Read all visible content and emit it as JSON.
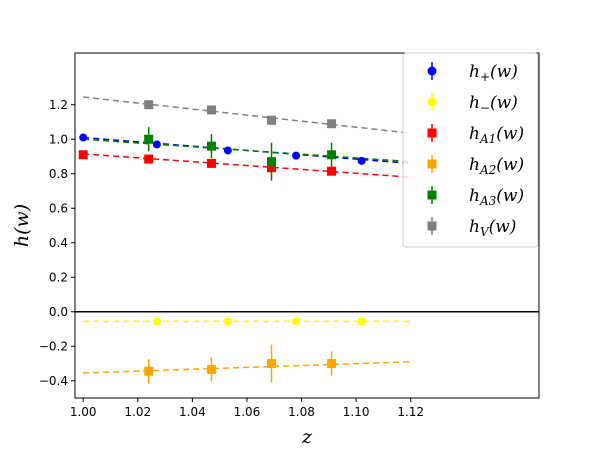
{
  "chart_data": {
    "type": "scatter",
    "xlabel": "z",
    "ylabel": "h(w)",
    "xlim": [
      0.997,
      1.167
    ],
    "ylim": [
      -0.5,
      1.5
    ],
    "xticks": [
      "1.00",
      "1.02",
      "1.04",
      "1.06",
      "1.08",
      "1.10",
      "1.12"
    ],
    "xtick_values": [
      1.0,
      1.02,
      1.04,
      1.06,
      1.08,
      1.1,
      1.12
    ],
    "yticks": [
      "−0.4",
      "−0.2",
      "0.0",
      "0.2",
      "0.4",
      "0.6",
      "0.8",
      "1.0",
      "1.2"
    ],
    "ytick_values": [
      -0.4,
      -0.2,
      0.0,
      0.2,
      0.4,
      0.6,
      0.8,
      1.0,
      1.2
    ],
    "zero_line": 0.0,
    "legend_position": "top-right",
    "series": [
      {
        "name": "h+(w)",
        "label_main": "h",
        "label_sub": "+",
        "label_arg": "(w)",
        "color": "#0000ff",
        "marker": "circle",
        "points": [
          {
            "x": 1.0,
            "y": 1.01,
            "err": 0.0
          },
          {
            "x": 1.027,
            "y": 0.97,
            "err": 0.0
          },
          {
            "x": 1.053,
            "y": 0.935,
            "err": 0.0
          },
          {
            "x": 1.078,
            "y": 0.905,
            "err": 0.0
          },
          {
            "x": 1.102,
            "y": 0.875,
            "err": 0.0
          }
        ],
        "fit": [
          1.01,
          0.86
        ]
      },
      {
        "name": "h−(w)",
        "label_main": "h",
        "label_sub": "−",
        "label_arg": "(w)",
        "color": "#ffff00",
        "marker": "circle",
        "points": [
          {
            "x": 1.027,
            "y": -0.055,
            "err": 0.0
          },
          {
            "x": 1.053,
            "y": -0.055,
            "err": 0.0
          },
          {
            "x": 1.078,
            "y": -0.055,
            "err": 0.0
          },
          {
            "x": 1.102,
            "y": -0.055,
            "err": 0.0
          }
        ],
        "fit": [
          -0.055,
          -0.055
        ]
      },
      {
        "name": "hA1(w)",
        "label_main": "h",
        "label_sub": "A1",
        "label_arg": "(w)",
        "color": "#ff0000",
        "marker": "square",
        "points": [
          {
            "x": 1.0,
            "y": 0.91,
            "err": 0.0
          },
          {
            "x": 1.024,
            "y": 0.885,
            "err": 0.0
          },
          {
            "x": 1.047,
            "y": 0.86,
            "err": 0.0
          },
          {
            "x": 1.069,
            "y": 0.835,
            "err": 0.0
          },
          {
            "x": 1.091,
            "y": 0.815,
            "err": 0.0
          }
        ],
        "fit": [
          0.915,
          0.78
        ]
      },
      {
        "name": "hA2(w)",
        "label_main": "h",
        "label_sub": "A2",
        "label_arg": "(w)",
        "color": "#ffa500",
        "marker": "square",
        "points": [
          {
            "x": 1.024,
            "y": -0.345,
            "err": 0.07
          },
          {
            "x": 1.047,
            "y": -0.335,
            "err": 0.07
          },
          {
            "x": 1.069,
            "y": -0.3,
            "err": 0.11
          },
          {
            "x": 1.091,
            "y": -0.3,
            "err": 0.07
          }
        ],
        "fit": [
          -0.355,
          -0.29
        ]
      },
      {
        "name": "hA3(w)",
        "label_main": "h",
        "label_sub": "A3",
        "label_arg": "(w)",
        "color": "#008000",
        "marker": "square",
        "points": [
          {
            "x": 1.024,
            "y": 1.0,
            "err": 0.07
          },
          {
            "x": 1.047,
            "y": 0.96,
            "err": 0.07
          },
          {
            "x": 1.069,
            "y": 0.87,
            "err": 0.11
          },
          {
            "x": 1.091,
            "y": 0.91,
            "err": 0.07
          }
        ],
        "fit": [
          1.0,
          0.87
        ]
      },
      {
        "name": "hV(w)",
        "label_main": "h",
        "label_sub": "V",
        "label_arg": "(w)",
        "color": "#808080",
        "marker": "square",
        "points": [
          {
            "x": 1.024,
            "y": 1.2,
            "err": 0.0
          },
          {
            "x": 1.047,
            "y": 1.17,
            "err": 0.0
          },
          {
            "x": 1.069,
            "y": 1.11,
            "err": 0.0
          },
          {
            "x": 1.091,
            "y": 1.09,
            "err": 0.0
          }
        ],
        "fit": [
          1.245,
          1.035
        ]
      }
    ],
    "fit_x_range": [
      1.0,
      1.12
    ]
  }
}
